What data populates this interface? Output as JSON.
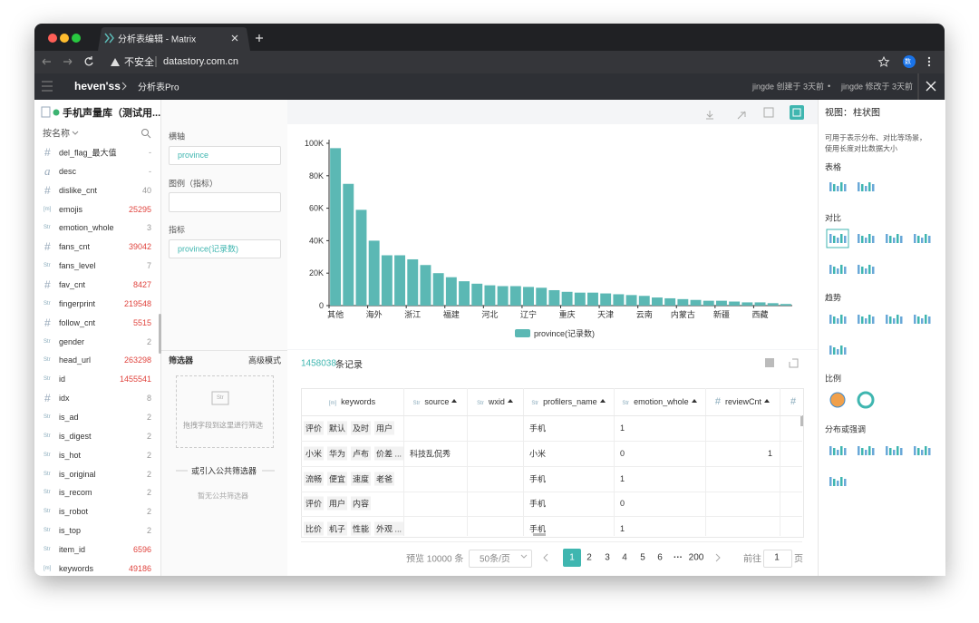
{
  "browser": {
    "tab_title": "分析表编辑 - Matrix",
    "security": "不安全",
    "url": "datastory.com.cn",
    "avatar": "数"
  },
  "app_header": {
    "project": "heven'ss",
    "page": "分析表Pro",
    "created": "jingde 创建于 3天前",
    "separator": "•",
    "modified": "jingde 修改于 3天前"
  },
  "field_panel": {
    "dataset": "手机声量库（测试用...",
    "sort": "按名称",
    "fields": [
      {
        "type": "#",
        "name": "del_flag_最大值",
        "count": "-"
      },
      {
        "type": "a",
        "name": "desc",
        "count": "-"
      },
      {
        "type": "#",
        "name": "dislike_cnt",
        "count": 40
      },
      {
        "type": "[m]",
        "name": "emojis",
        "count": 25295
      },
      {
        "type": "Str",
        "name": "emotion_whole",
        "count": 3
      },
      {
        "type": "#",
        "name": "fans_cnt",
        "count": 39042
      },
      {
        "type": "Str",
        "name": "fans_level",
        "count": 7
      },
      {
        "type": "#",
        "name": "fav_cnt",
        "count": 8427
      },
      {
        "type": "Str",
        "name": "fingerprint",
        "count": 219548
      },
      {
        "type": "#",
        "name": "follow_cnt",
        "count": 5515
      },
      {
        "type": "Str",
        "name": "gender",
        "count": 2
      },
      {
        "type": "Str",
        "name": "head_url",
        "count": 263298
      },
      {
        "type": "Str",
        "name": "id",
        "count": 1455541
      },
      {
        "type": "#",
        "name": "idx",
        "count": 8
      },
      {
        "type": "Str",
        "name": "is_ad",
        "count": 2
      },
      {
        "type": "Str",
        "name": "is_digest",
        "count": 2
      },
      {
        "type": "Str",
        "name": "is_hot",
        "count": 2
      },
      {
        "type": "Str",
        "name": "is_original",
        "count": 2
      },
      {
        "type": "Str",
        "name": "is_recom",
        "count": 2
      },
      {
        "type": "Str",
        "name": "is_robot",
        "count": 2
      },
      {
        "type": "Str",
        "name": "is_top",
        "count": 2
      },
      {
        "type": "Str",
        "name": "item_id",
        "count": 6596
      },
      {
        "type": "[m]",
        "name": "keywords",
        "count": 49186
      }
    ]
  },
  "config_panel": {
    "x_axis_label": "横轴",
    "x_axis_value": "province",
    "legend_label": "图例（指标）",
    "metric_label": "指标",
    "metric_value": "province(记录数)",
    "filter_title": "筛选器",
    "advanced": "高级模式",
    "drop_hint": "拖拽字段到这里进行筛选",
    "drop_icon": "Str",
    "public_filter": "或引入公共筛选器",
    "no_public_filter": "暂无公共筛选器"
  },
  "chart_data": {
    "type": "bar",
    "categories": [
      "其他",
      null,
      null,
      "海外",
      null,
      null,
      "浙江",
      null,
      null,
      "福建",
      null,
      null,
      "河北",
      null,
      null,
      "辽宁",
      null,
      null,
      "重庆",
      null,
      null,
      "天津",
      null,
      null,
      "云南",
      null,
      null,
      "内蒙古",
      null,
      null,
      "新疆",
      null,
      null,
      "西藏",
      null,
      null
    ],
    "series": [
      {
        "name": "province(记录数)",
        "color": "#5bb8b4",
        "values": [
          97000,
          75000,
          59000,
          40000,
          31000,
          31000,
          28500,
          25000,
          20000,
          17500,
          15000,
          13500,
          12500,
          12000,
          12000,
          11500,
          11000,
          9500,
          8500,
          8000,
          8000,
          7500,
          7000,
          6500,
          6000,
          5000,
          4500,
          4000,
          3500,
          3000,
          3000,
          2500,
          2000,
          2000,
          1500,
          1000
        ]
      }
    ],
    "ylim": [
      0,
      100000
    ],
    "yticks": [
      0,
      {
        "value": 20000,
        "label": "20K"
      },
      {
        "value": 40000,
        "label": "40K"
      },
      {
        "value": 60000,
        "label": "60K"
      },
      {
        "value": 80000,
        "label": "80K"
      },
      {
        "value": 100000,
        "label": "100K"
      }
    ],
    "legend": "bottom"
  },
  "table": {
    "record_count": 1458038,
    "record_suffix": "条记录",
    "columns": [
      {
        "type": "[m]",
        "name": "keywords"
      },
      {
        "type": "Str",
        "name": "source"
      },
      {
        "type": "Str",
        "name": "wxid"
      },
      {
        "type": "Str",
        "name": "profilers_name"
      },
      {
        "type": "Str",
        "name": "emotion_whole"
      },
      {
        "type": "#",
        "name": "reviewCnt"
      },
      {
        "type": "#"
      }
    ],
    "rows": [
      [
        [
          "评价",
          "默认",
          "及时",
          "用户"
        ],
        null,
        null,
        "手机",
        1,
        null
      ],
      [
        [
          "小米",
          "华为",
          "卢布",
          "价差 ..."
        ],
        "科技乱侃秀",
        null,
        "小米",
        0,
        1
      ],
      [
        [
          "流畅",
          "便宜",
          "速度",
          "老爸"
        ],
        null,
        null,
        "手机",
        1,
        null
      ],
      [
        [
          "评价",
          "用户",
          "内容"
        ],
        null,
        null,
        "手机",
        0,
        null
      ],
      [
        [
          "比价",
          "机子",
          "性能",
          "外观 ..."
        ],
        null,
        null,
        "手机",
        1,
        null
      ]
    ]
  },
  "pagination": {
    "preview": "预览 10000 条",
    "page_size": "50条/页",
    "pages": [
      1,
      2,
      3,
      4,
      5,
      6
    ],
    "ellipsis": "···",
    "last": 200,
    "goto": "前往",
    "goto_value": 1,
    "goto_suffix": "页"
  },
  "view_panel": {
    "title": "视图：",
    "current": "柱状图",
    "description": [
      "可用于表示分布、对比等场景，",
      "使用长度对比数据大小"
    ],
    "sections": [
      "表格",
      "对比",
      "趋势",
      "比例",
      "分布或强调"
    ]
  }
}
